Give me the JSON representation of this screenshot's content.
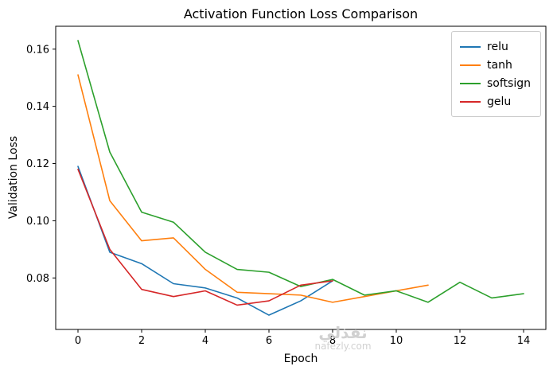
{
  "figure": {
    "background": "#ffffff",
    "spine_color": "#000000",
    "text_color": "#000000",
    "legend_border_color": "#cccccc"
  },
  "chart_data": {
    "type": "line",
    "title": "Activation Function Loss Comparison",
    "xlabel": "Epoch",
    "ylabel": "Validation Loss",
    "xlim": [
      -0.7,
      14.7
    ],
    "ylim": [
      0.062,
      0.168
    ],
    "xticks": [
      0,
      2,
      4,
      6,
      8,
      10,
      12,
      14
    ],
    "yticks": [
      0.08,
      0.1,
      0.12,
      0.14,
      0.16
    ],
    "grid": false,
    "legend_position": "upper right",
    "series": [
      {
        "name": "relu",
        "color": "#1f77b4",
        "x": [
          0,
          1,
          2,
          3,
          4,
          5,
          6,
          7,
          8
        ],
        "y": [
          0.119,
          0.089,
          0.085,
          0.078,
          0.0765,
          0.073,
          0.067,
          0.072,
          0.079
        ]
      },
      {
        "name": "tanh",
        "color": "#ff7f0e",
        "x": [
          0,
          1,
          2,
          3,
          4,
          5,
          6,
          7,
          8,
          9,
          10,
          11
        ],
        "y": [
          0.151,
          0.107,
          0.093,
          0.094,
          0.083,
          0.075,
          0.0745,
          0.074,
          0.0715,
          0.0735,
          0.0755,
          0.0775
        ]
      },
      {
        "name": "softsign",
        "color": "#2ca02c",
        "x": [
          0,
          1,
          2,
          3,
          4,
          5,
          6,
          7,
          8,
          9,
          10,
          11,
          12,
          13,
          14
        ],
        "y": [
          0.163,
          0.124,
          0.103,
          0.0995,
          0.089,
          0.083,
          0.082,
          0.077,
          0.0795,
          0.074,
          0.0755,
          0.0715,
          0.0785,
          0.073,
          0.0745
        ]
      },
      {
        "name": "gelu",
        "color": "#d62728",
        "x": [
          0,
          1,
          2,
          3,
          4,
          5,
          6,
          7,
          8
        ],
        "y": [
          0.118,
          0.09,
          0.076,
          0.0735,
          0.0755,
          0.0705,
          0.072,
          0.0775,
          0.079
        ]
      }
    ]
  },
  "watermark": {
    "line1": "نفذلي",
    "line2": "nafezly.com"
  }
}
